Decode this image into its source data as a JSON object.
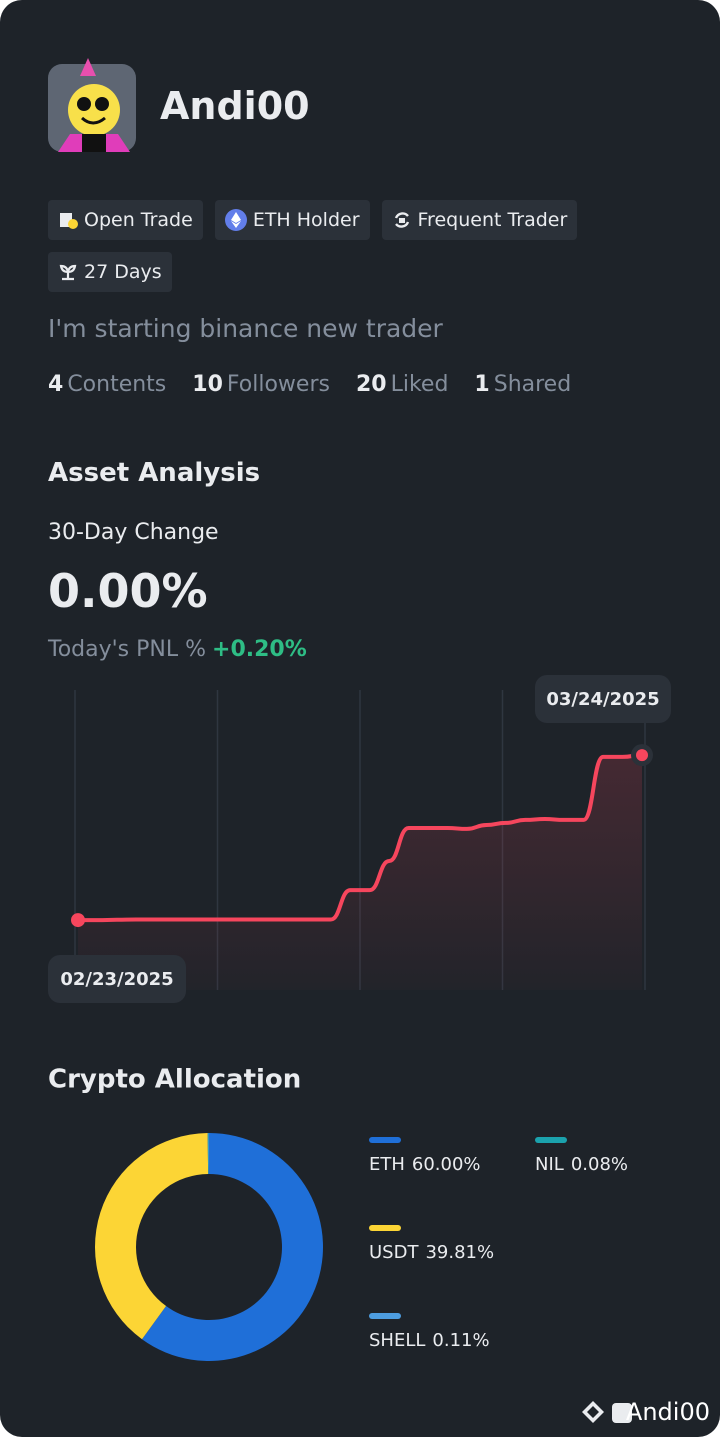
{
  "profile": {
    "name": "Andi00",
    "badges": [
      "Open Trade",
      "ETH Holder",
      "Frequent Trader",
      "27 Days"
    ],
    "bio": "I'm starting binance new trader",
    "stats": [
      {
        "value": "4",
        "label": "Contents"
      },
      {
        "value": "10",
        "label": "Followers"
      },
      {
        "value": "20",
        "label": "Liked"
      },
      {
        "value": "1",
        "label": "Shared"
      }
    ]
  },
  "asset_analysis": {
    "title": "Asset Analysis",
    "change_label": "30-Day Change",
    "change_value": "0.00%",
    "pnl_label": "Today's PNL %",
    "pnl_value": "+0.20%"
  },
  "chart_data": [
    {
      "type": "line",
      "color": "#f6465d",
      "ylim": [
        0,
        100
      ],
      "categories": [
        "02/23/2025",
        null,
        null,
        null,
        null,
        null,
        null,
        null,
        null,
        null,
        null,
        null,
        null,
        null,
        null,
        null,
        null,
        null,
        null,
        null,
        null,
        null,
        null,
        null,
        null,
        null,
        null,
        null,
        null,
        "03/24/2025"
      ],
      "values": [
        23.3,
        23.3,
        23.4,
        23.5,
        23.5,
        23.5,
        23.5,
        23.5,
        23.5,
        23.5,
        23.5,
        23.5,
        23.5,
        23.5,
        33.3,
        33.3,
        43,
        54,
        54,
        54,
        53.7,
        55,
        55.7,
        56.7,
        57,
        56.7,
        56.7,
        77.7,
        77.7,
        78.3
      ]
    },
    {
      "type": "pie",
      "title": "Crypto Allocation",
      "categories": [
        "ETH",
        "USDT",
        "SHELL",
        "NIL"
      ],
      "values": [
        60.0,
        39.81,
        0.11,
        0.08
      ],
      "value_labels": [
        "60.00%",
        "39.81%",
        "0.11%",
        "0.08%"
      ],
      "colors": [
        "#1f6fd8",
        "#fcd535",
        "#4d9de0",
        "#1ba2ad"
      ]
    }
  ],
  "footer": {
    "watermark": "Andi00"
  }
}
